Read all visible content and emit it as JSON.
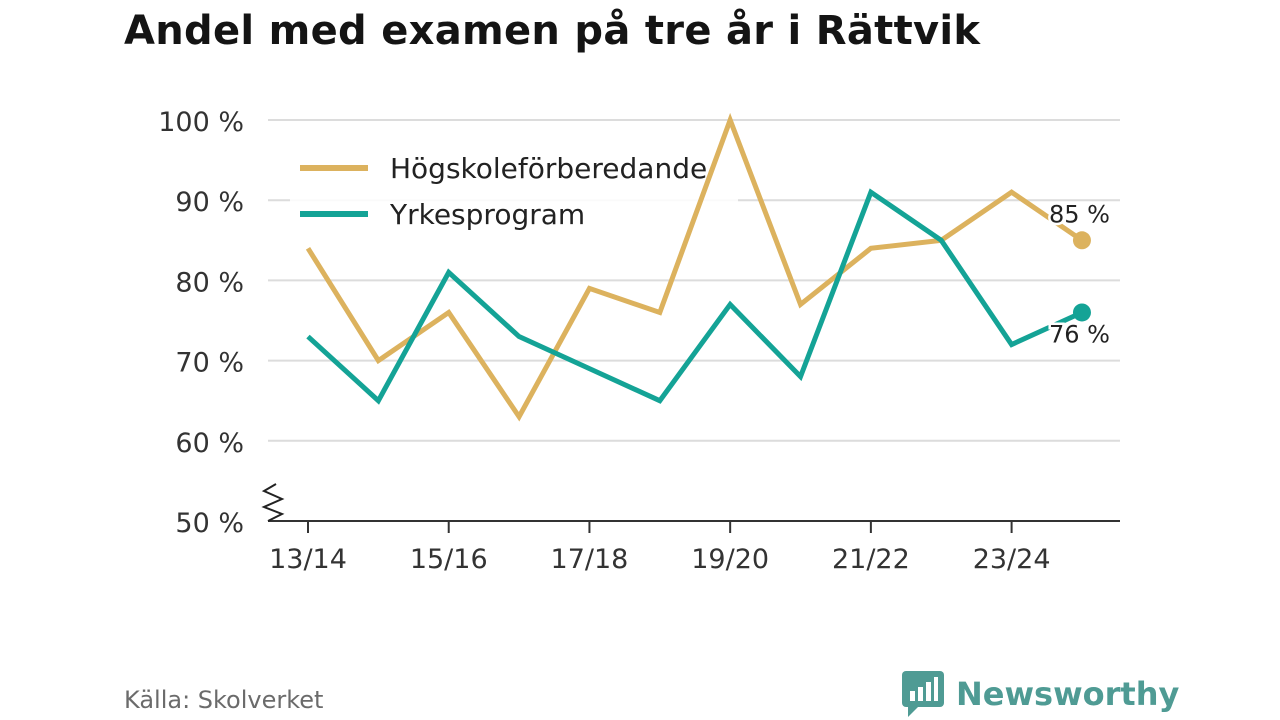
{
  "title": "Andel med examen på tre år i Rättvik",
  "source": "Källa: Skolverket",
  "brand": {
    "name": "Newsworthy",
    "icon": "newsworthy-logo-icon"
  },
  "colors": {
    "hogskole": "#dcb25e",
    "yrkes": "#14a396",
    "grid": "#dcdcdc",
    "axis": "#333333",
    "brand": "#4f9b94"
  },
  "chart_data": {
    "type": "line",
    "title": "Andel med examen på tre år i Rättvik",
    "x": [
      "13/14",
      "14/15",
      "15/16",
      "16/17",
      "17/18",
      "18/19",
      "19/20",
      "20/21",
      "21/22",
      "22/23",
      "23/24",
      "24/25"
    ],
    "x_tick_labels": [
      "13/14",
      "15/16",
      "17/18",
      "19/20",
      "21/22",
      "23/24"
    ],
    "ylim": [
      50,
      100
    ],
    "y_ticks": [
      50,
      60,
      70,
      80,
      90,
      100
    ],
    "y_tick_labels": [
      "50 %",
      "60 %",
      "70 %",
      "80 %",
      "90 %",
      "100 %"
    ],
    "y_axis_break": true,
    "grid": true,
    "legend": "top-left",
    "series": [
      {
        "name": "Högskoleförberedande",
        "color": "#dcb25e",
        "values": [
          84,
          70,
          76,
          63,
          79,
          76,
          100,
          77,
          84,
          85,
          91,
          85
        ],
        "end_label": "85 %"
      },
      {
        "name": "Yrkesprogram",
        "color": "#14a396",
        "values": [
          73,
          65,
          81,
          73,
          69,
          65,
          77,
          68,
          91,
          85,
          72,
          76
        ],
        "end_label": "76 %"
      }
    ]
  }
}
